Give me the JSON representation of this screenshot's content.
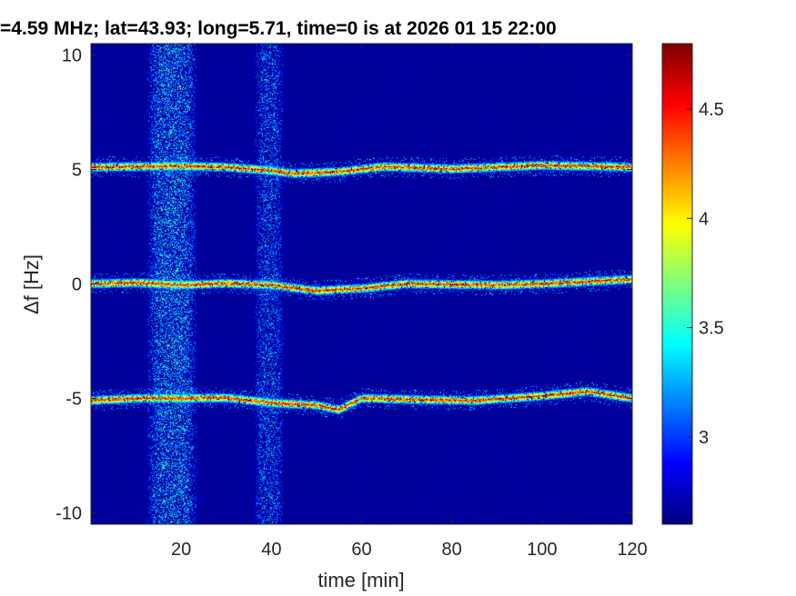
{
  "chart_data": {
    "type": "heatmap",
    "title": "=4.59 MHz;  lat=43.93; long=5.71, time=0 is at 2026 01 15 22:00",
    "xlabel": "time [min]",
    "ylabel": "Δf [Hz]",
    "xlim": [
      0,
      120
    ],
    "ylim": [
      -10.5,
      10.5
    ],
    "x_ticks": [
      "20",
      "40",
      "60",
      "80",
      "100",
      "120"
    ],
    "y_ticks": [
      "-10",
      "-5",
      "0",
      "5",
      "10"
    ],
    "colormap": "jet",
    "color_range": [
      2.6,
      4.8
    ],
    "colorbar_ticks": [
      "3",
      "3.5",
      "4",
      "4.5"
    ],
    "background_level": 2.62,
    "traces": [
      {
        "name": "",
        "points": [
          [
            0,
            5.1
          ],
          [
            10,
            5.12
          ],
          [
            20,
            5.15
          ],
          [
            30,
            5.1
          ],
          [
            40,
            4.95
          ],
          [
            45,
            4.82
          ],
          [
            55,
            4.9
          ],
          [
            65,
            5.12
          ],
          [
            80,
            5.02
          ],
          [
            100,
            5.18
          ],
          [
            120,
            5.1
          ]
        ]
      },
      {
        "name": "",
        "points": [
          [
            0,
            0.0
          ],
          [
            10,
            0.05
          ],
          [
            20,
            -0.05
          ],
          [
            30,
            0.02
          ],
          [
            40,
            -0.05
          ],
          [
            50,
            -0.3
          ],
          [
            60,
            -0.2
          ],
          [
            70,
            0.0
          ],
          [
            90,
            -0.05
          ],
          [
            100,
            0.0
          ],
          [
            110,
            0.1
          ],
          [
            120,
            0.2
          ]
        ]
      },
      {
        "name": "",
        "points": [
          [
            0,
            -5.1
          ],
          [
            10,
            -5.0
          ],
          [
            20,
            -5.0
          ],
          [
            30,
            -4.98
          ],
          [
            40,
            -5.2
          ],
          [
            50,
            -5.3
          ],
          [
            55,
            -5.5
          ],
          [
            60,
            -5.0
          ],
          [
            70,
            -5.05
          ],
          [
            85,
            -5.1
          ],
          [
            100,
            -4.9
          ],
          [
            110,
            -4.7
          ],
          [
            120,
            -5.0
          ]
        ]
      }
    ],
    "noise_bands": [
      {
        "x": [
          12,
          24
        ],
        "intensity": 0.9
      },
      {
        "x": [
          36,
          43
        ],
        "intensity": 0.7
      }
    ],
    "colors": {
      "accent_low": "#00008f",
      "accent_high": "#800000"
    }
  }
}
